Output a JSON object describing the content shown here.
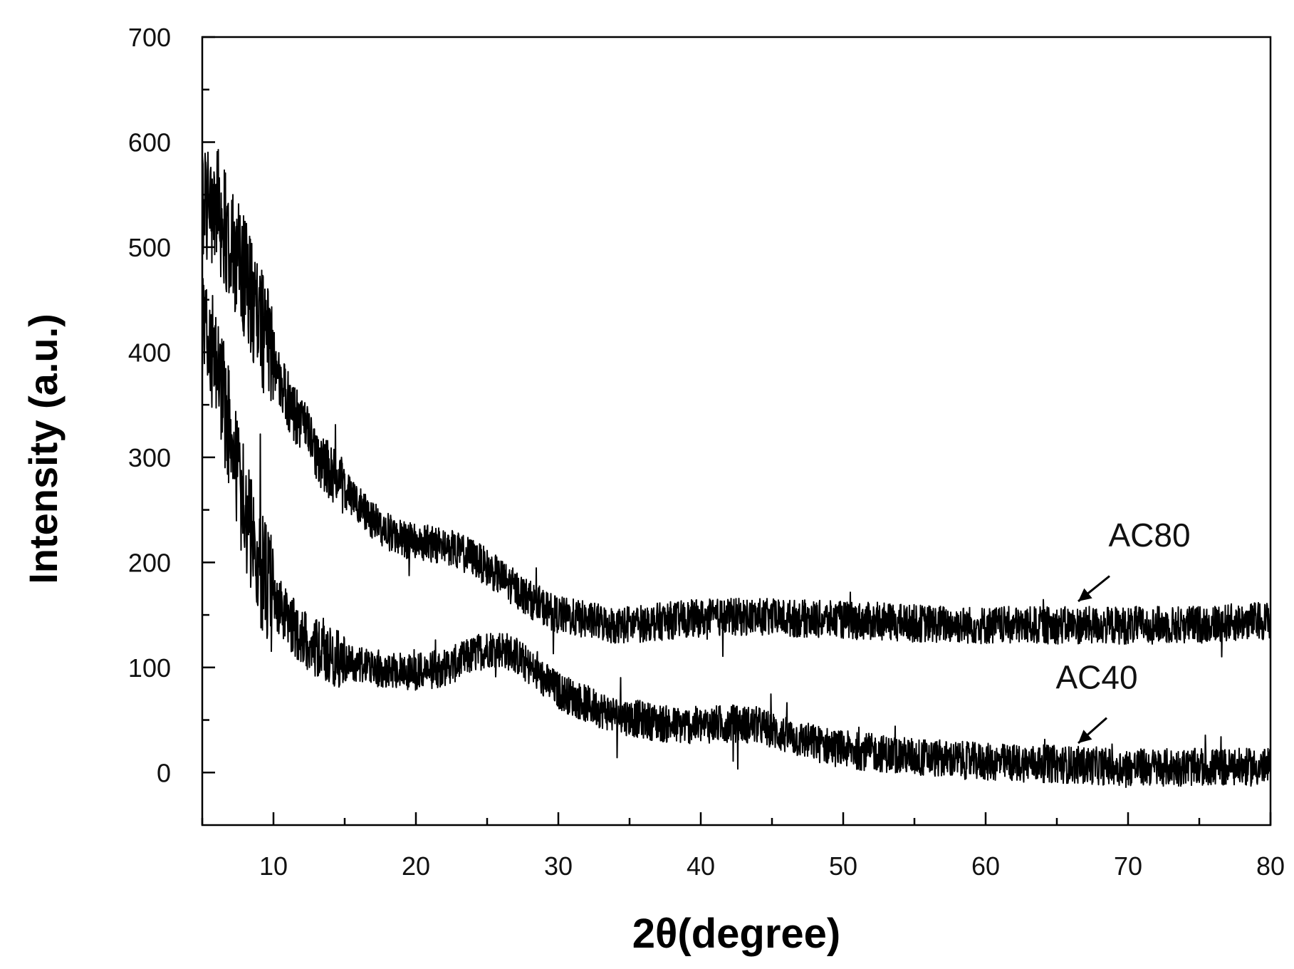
{
  "chart_data": {
    "type": "line",
    "title": "",
    "xlabel": "(degree)",
    "xlabel_symbol": "2θ",
    "ylabel": "Intensity (a.u.)",
    "xlim": [
      5,
      80
    ],
    "ylim": [
      -50,
      700
    ],
    "x_ticks": [
      10,
      20,
      30,
      40,
      50,
      60,
      70,
      80
    ],
    "y_ticks": [
      0,
      100,
      200,
      300,
      400,
      500,
      600,
      700
    ],
    "grid": false,
    "legend": "none (series labelled directly with arrows)",
    "line_color": "#000000",
    "series": [
      {
        "name": "AC80",
        "x": [
          5,
          6,
          7,
          8,
          9,
          10,
          11,
          12,
          13,
          14,
          15,
          16,
          17,
          18,
          19,
          20,
          21,
          22,
          23,
          24,
          25,
          26,
          27,
          28,
          29,
          30,
          32,
          34,
          36,
          38,
          40,
          42,
          44,
          46,
          48,
          50,
          55,
          60,
          65,
          70,
          75,
          80
        ],
        "values": [
          545,
          540,
          505,
          470,
          430,
          395,
          355,
          330,
          305,
          285,
          270,
          255,
          240,
          230,
          222,
          220,
          218,
          215,
          210,
          205,
          195,
          185,
          175,
          165,
          157,
          150,
          145,
          140,
          142,
          145,
          147,
          148,
          148,
          147,
          146,
          145,
          142,
          140,
          140,
          140,
          141,
          145
        ]
      },
      {
        "name": "AC40",
        "x": [
          5,
          6,
          7,
          8,
          9,
          10,
          11,
          12,
          13,
          14,
          15,
          16,
          17,
          18,
          19,
          20,
          21,
          22,
          23,
          24,
          25,
          26,
          27,
          28,
          29,
          30,
          32,
          34,
          36,
          38,
          40,
          42,
          44,
          46,
          48,
          50,
          55,
          60,
          65,
          70,
          75,
          80
        ],
        "values": [
          420,
          390,
          320,
          250,
          195,
          165,
          145,
          130,
          118,
          110,
          105,
          102,
          100,
          99,
          97,
          96,
          97,
          100,
          105,
          112,
          118,
          118,
          112,
          100,
          88,
          78,
          65,
          55,
          50,
          45,
          45,
          47,
          45,
          35,
          28,
          22,
          15,
          10,
          8,
          5,
          5,
          5
        ]
      }
    ],
    "annotations": [
      {
        "text": "AC80",
        "x": 71.5,
        "y": 215,
        "arrow_from": [
          68.7,
          187
        ],
        "arrow_to": [
          66.5,
          163
        ]
      },
      {
        "text": "AC40",
        "x": 67.8,
        "y": 80,
        "arrow_from": [
          68.5,
          52
        ],
        "arrow_to": [
          66.5,
          28
        ]
      }
    ]
  }
}
